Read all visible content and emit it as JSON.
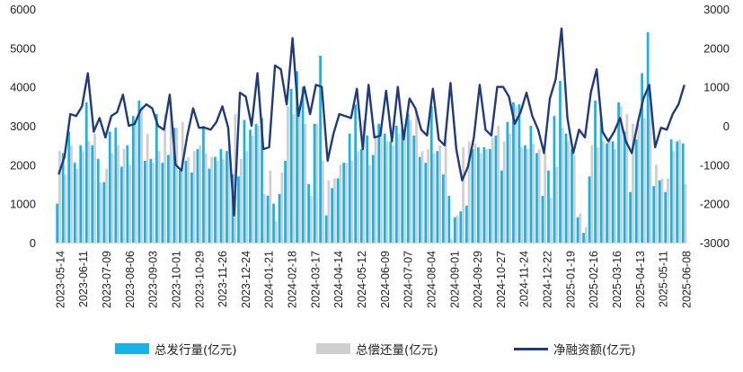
{
  "chart_data": {
    "type": "bar",
    "colors": {
      "issuance": "#16b3e6",
      "repayment": "#cfcfcf",
      "net": "#1f3b7a"
    },
    "left_axis": {
      "ylim": [
        0,
        6000
      ],
      "ticks": [
        "0",
        "1000",
        "2000",
        "3000",
        "4000",
        "5000",
        "6000"
      ]
    },
    "right_axis": {
      "ylim": [
        -3000,
        3000
      ],
      "ticks": [
        "-3000",
        "-2000",
        "-1000",
        "0",
        "1000",
        "2000",
        "3000"
      ]
    },
    "x_tick_labels": [
      "2023-05-14",
      "2023-06-11",
      "2023-07-09",
      "2023-08-06",
      "2023-09-03",
      "2023-10-01",
      "2023-10-29",
      "2023-11-26",
      "2023-12-24",
      "2024-01-21",
      "2024-02-18",
      "2024-03-17",
      "2024-04-14",
      "2024-05-12",
      "2024-06-09",
      "2024-07-07",
      "2024-08-04",
      "2024-09-01",
      "2024-09-29",
      "2024-10-27",
      "2024-11-24",
      "2024-12-22",
      "2025-01-19",
      "2025-02-16",
      "2025-03-16",
      "2025-04-13",
      "2025-05-11",
      "2025-06-08"
    ],
    "series": [
      {
        "name": "总发行量(亿元)",
        "kind": "bar",
        "values": [
          1000,
          2300,
          2850,
          2050,
          2500,
          3600,
          2500,
          2150,
          1550,
          2850,
          2950,
          1950,
          2500,
          3250,
          3650,
          2100,
          2150,
          3300,
          2050,
          2250,
          2950,
          1850,
          2100,
          1800,
          2400,
          3000,
          1900,
          2200,
          2400,
          2350,
          1750,
          1700,
          3150,
          2900,
          3050,
          3200,
          1200,
          1000,
          1250,
          2100,
          3950,
          4400,
          4000,
          1500,
          3050,
          4800,
          700,
          1400,
          1650,
          2050,
          2800,
          3550,
          2400,
          2750,
          2250,
          3050,
          2800,
          2600,
          3000,
          2950,
          3300,
          2750,
          2200,
          2050,
          3500,
          2350,
          1750,
          1200,
          650,
          800,
          950,
          2400,
          2450,
          2450,
          2400,
          2750,
          1850,
          3100,
          3600,
          3550,
          2500,
          3000,
          2300,
          1200,
          1850,
          3250,
          4150,
          2800,
          2400,
          650,
          250,
          1700,
          3650,
          3250,
          2550,
          2600,
          3600,
          2850,
          1300,
          2650,
          4350,
          5400,
          1450,
          1600,
          1300,
          2650,
          2600,
          2550
        ],
        "bar_labels_note": ""
      },
      {
        "name": "总偿还量(亿元)",
        "kind": "bar",
        "values": [
          2350,
          1750,
          2500,
          1900,
          2350,
          2600,
          2800,
          1550,
          1900,
          2300,
          2500,
          2400,
          2000,
          3100,
          3500,
          2800,
          2050,
          2350,
          3300,
          3450,
          2950,
          3100,
          2200,
          2350,
          2500,
          2300,
          2200,
          2100,
          2150,
          2550,
          3300,
          2150,
          2350,
          2750,
          3000,
          1250,
          1850,
          550,
          1800,
          3500,
          3300,
          3450,
          3050,
          1200,
          3050,
          2100,
          1600,
          1650,
          2000,
          2050,
          2100,
          2350,
          3150,
          2000,
          2700,
          2950,
          2600,
          2500,
          2800,
          2800,
          3150,
          3400,
          2350,
          2400,
          2300,
          2500,
          2650,
          100,
          700,
          2450,
          2600,
          2550,
          2300,
          2400,
          2700,
          3000,
          2600,
          2800,
          3500,
          2450,
          2400,
          2550,
          2400,
          2300,
          1150,
          1950,
          2950,
          2600,
          2250,
          750,
          400,
          2500,
          2450,
          2600,
          2700,
          2400,
          3500,
          3300,
          3050,
          3050,
          3200,
          3600,
          2000,
          1650,
          1650,
          2350,
          2650,
          1500
        ]
      },
      {
        "name": "净融资额(亿元)",
        "kind": "line",
        "values": [
          -1250,
          -800,
          300,
          250,
          500,
          1350,
          -150,
          200,
          -300,
          250,
          350,
          800,
          0,
          50,
          400,
          550,
          450,
          0,
          -100,
          800,
          -1000,
          -1150,
          -250,
          450,
          -50,
          -50,
          -100,
          100,
          500,
          -50,
          -2300,
          850,
          750,
          0,
          1350,
          -600,
          -550,
          1550,
          1450,
          550,
          2250,
          250,
          1000,
          300,
          1050,
          1000,
          -900,
          -200,
          300,
          250,
          200,
          950,
          -600,
          1050,
          -300,
          -250,
          900,
          -400,
          1000,
          -350,
          700,
          450,
          -100,
          -250,
          950,
          -350,
          -500,
          1100,
          -600,
          -1400,
          -1050,
          -300,
          1050,
          -100,
          -250,
          1000,
          1000,
          750,
          50,
          350,
          850,
          250,
          -100,
          -700,
          700,
          1200,
          2500,
          200,
          -700,
          -100,
          -300,
          850,
          1450,
          -150,
          -400,
          -150,
          200,
          -400,
          -700,
          50,
          700,
          1050,
          -550,
          -50,
          -100,
          300,
          550,
          1050
        ]
      }
    ],
    "legend": [
      "总发行量(亿元)",
      "总偿还量(亿元)",
      "净融资额(亿元)"
    ],
    "legend_placement": "bottom"
  }
}
